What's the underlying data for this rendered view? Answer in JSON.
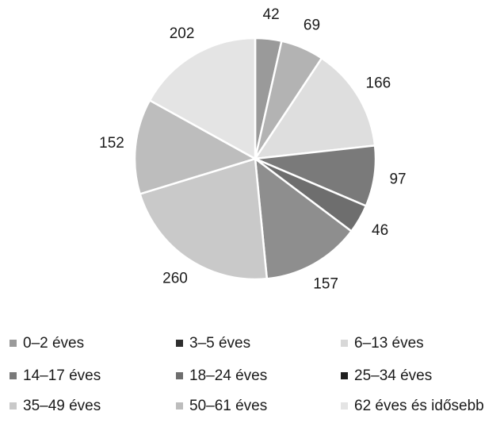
{
  "chart_data": {
    "type": "pie",
    "title": "",
    "start_angle_deg": 0,
    "direction": "clockwise",
    "legend_position": "bottom",
    "slices": [
      {
        "label": "0–2 éves",
        "value": 42,
        "color": "#9a9a9a"
      },
      {
        "label": "3–5 éves",
        "value": 69,
        "color": "#b3b3b3"
      },
      {
        "label": "6–13 éves",
        "value": 166,
        "color": "#dedede"
      },
      {
        "label": "14–17 éves",
        "value": 97,
        "color": "#7a7a7a"
      },
      {
        "label": "18–24 éves",
        "value": 46,
        "color": "#6e6e6e"
      },
      {
        "label": "25–34 éves",
        "value": 157,
        "color": "#8e8e8e"
      },
      {
        "label": "35–49 éves",
        "value": 260,
        "color": "#c9c9c9"
      },
      {
        "label": "50–61 éves",
        "value": 152,
        "color": "#bdbdbd"
      },
      {
        "label": "62 éves és idősebb",
        "value": 202,
        "color": "#e4e4e4"
      }
    ],
    "legend": [
      {
        "label": "0–2 éves",
        "color": "#9a9a9a"
      },
      {
        "label": "3–5 éves",
        "color": "#2e2e2e"
      },
      {
        "label": "6–13 éves",
        "color": "#d8d8d8"
      },
      {
        "label": "14–17 éves",
        "color": "#7a7a7a"
      },
      {
        "label": "18–24 éves",
        "color": "#6e6e6e"
      },
      {
        "label": "25–34 éves",
        "color": "#1f1f1f"
      },
      {
        "label": "35–49 éves",
        "color": "#c9c9c9"
      },
      {
        "label": "50–61 éves",
        "color": "#bdbdbd"
      },
      {
        "label": "62 éves és idősebb",
        "color": "#e4e4e4"
      }
    ]
  }
}
